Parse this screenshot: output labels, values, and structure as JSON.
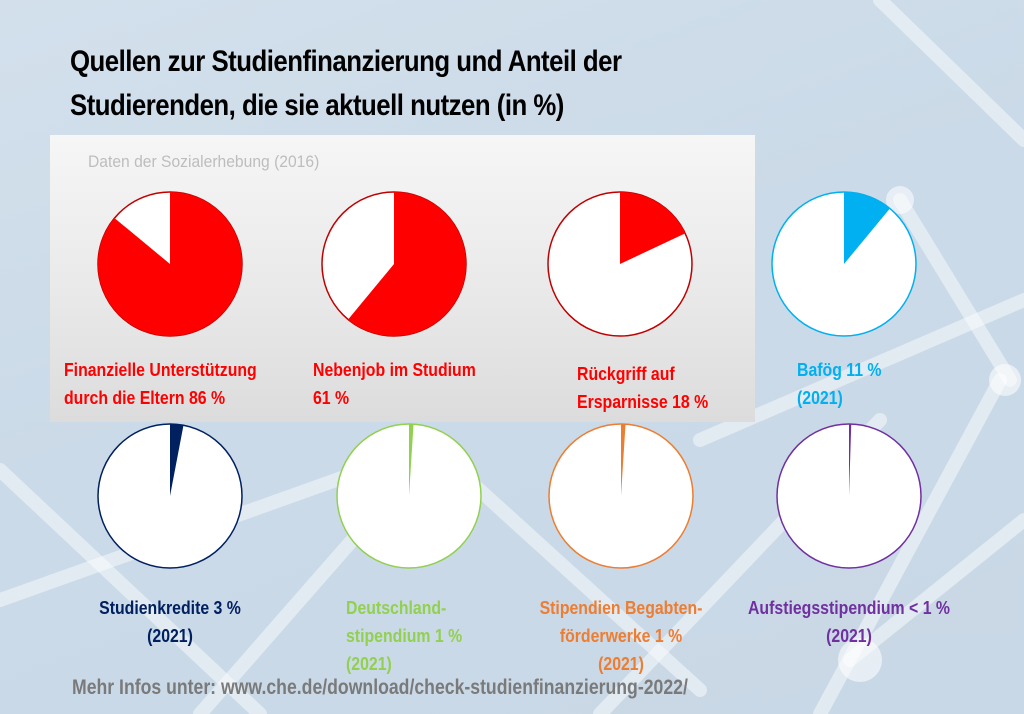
{
  "title": {
    "line1": "Quellen zur Studienfinanzierung und Anteil der",
    "line2": "Studierenden, die sie aktuell nutzen (in %)"
  },
  "subtitle": "Daten der Sozialerhebung (2016)",
  "footer": "Mehr Infos unter: www.che.de/download/check-studienfinanzierung-2022/",
  "chart_data": {
    "type": "pie",
    "title": "Quellen zur Studienfinanzierung und Anteil der Studierenden, die sie aktuell nutzen (in %)",
    "subtitle": "Daten der Sozialerhebung (2016)",
    "unit": "%",
    "charts": [
      {
        "name": "Finanzielle Unterstützung durch die Eltern",
        "value": 86,
        "color": "#ff0000",
        "year": "2016",
        "label_lines": [
          "Finanzielle Unterstützung",
          "durch die Eltern  86 %"
        ]
      },
      {
        "name": "Nebenjob im Studium",
        "value": 61,
        "color": "#ff0000",
        "year": "2016",
        "label_lines": [
          "Nebenjob im Studium",
          "61 %"
        ]
      },
      {
        "name": "Rückgriff auf Ersparnisse",
        "value": 18,
        "color": "#ff0000",
        "year": "2016",
        "label_lines": [
          "Rückgriff auf",
          "Ersparnisse 18 %"
        ]
      },
      {
        "name": "Bafög",
        "value": 11,
        "color": "#00b0f0",
        "year": "2021",
        "label_lines": [
          "Bafög 11 %",
          "(2021)"
        ]
      },
      {
        "name": "Studienkredite",
        "value": 3,
        "color": "#002060",
        "year": "2021",
        "label_lines": [
          "Studienkredite 3 %",
          "(2021)"
        ]
      },
      {
        "name": "Deutschlandstipendium",
        "value": 1,
        "color": "#92d050",
        "year": "2021",
        "label_lines": [
          "Deutschland-",
          "stipendium 1 %",
          "(2021)"
        ]
      },
      {
        "name": "Stipendien Begabtenförderwerke",
        "value": 1,
        "color": "#ed7d31",
        "year": "2021",
        "label_lines": [
          "Stipendien Begabten-",
          "förderwerke  1 %",
          "(2021)"
        ]
      },
      {
        "name": "Aufstiegsstipendium",
        "value": 0.5,
        "value_label": "< 1 %",
        "color": "#7030a0",
        "year": "2021",
        "label_lines": [
          "Aufstiegsstipendium < 1 %",
          "(2021)"
        ]
      }
    ],
    "outline_colors": [
      "#c00000",
      "#c00000",
      "#c00000",
      "#00b0f0",
      "#002060",
      "#92d050",
      "#ed7d31",
      "#7030a0"
    ]
  }
}
